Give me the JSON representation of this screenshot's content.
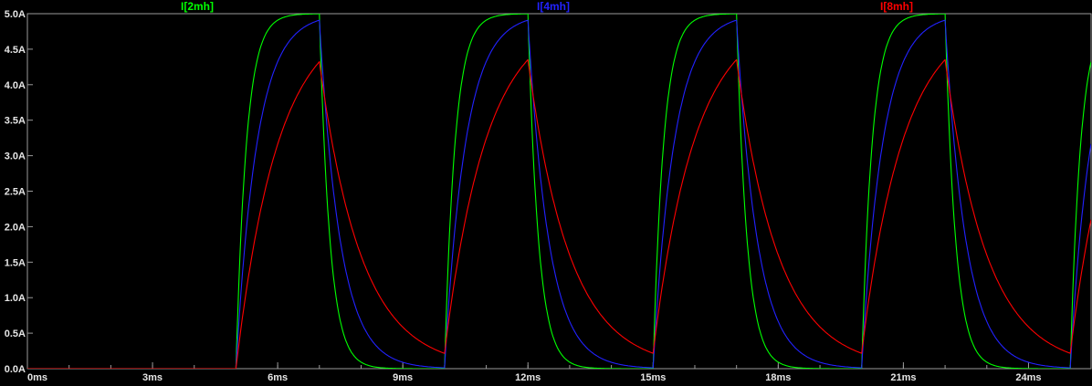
{
  "window": {
    "background": "#000000"
  },
  "chart_data": {
    "type": "line",
    "title": "",
    "grid": false,
    "legend_position": "top",
    "axis_color": "#9a9a9a",
    "tick_text_color": "#e6e6e6",
    "xlim": [
      0,
      25.5
    ],
    "ylim": [
      0,
      5
    ],
    "x_unit": "ms",
    "y_unit": "A",
    "x_ticks": [
      "0ms",
      "3ms",
      "6ms",
      "9ms",
      "12ms",
      "15ms",
      "18ms",
      "21ms",
      "24ms"
    ],
    "x_tick_values": [
      0,
      3,
      6,
      9,
      12,
      15,
      18,
      21,
      24
    ],
    "x_minor_tick_step_ms": 1,
    "y_ticks": [
      "5.0A",
      "4.5A",
      "4.0A",
      "3.5A",
      "3.0A",
      "2.5A",
      "2.0A",
      "1.5A",
      "1.0A",
      "0.5A",
      "0.0A"
    ],
    "y_tick_values": [
      5.0,
      4.5,
      4.0,
      3.5,
      3.0,
      2.5,
      2.0,
      1.5,
      1.0,
      0.5,
      0.0
    ],
    "series": [
      {
        "name": "I[2mh]",
        "color": "#00ff00",
        "tau_ms": 0.25,
        "label_x_frac": 0.181,
        "peak_A": 5.0,
        "min_between_pulses_A": 0.0
      },
      {
        "name": "I[4mh]",
        "color": "#2222ff",
        "tau_ms": 0.5,
        "label_x_frac": 0.507,
        "peak_A": 4.9,
        "min_between_pulses_A": 0.01
      },
      {
        "name": "I[8mh]",
        "color": "#ff0000",
        "tau_ms": 1.0,
        "label_x_frac": 0.821,
        "peak_A": 4.35,
        "min_between_pulses_A": 0.22
      }
    ],
    "signal": {
      "model": "pulse_train_first_order_exponential",
      "amplitude_A": 5,
      "initial_A": 0,
      "t_start_ms": 5,
      "t_on_ms": 2,
      "period_ms": 5,
      "t_end_ms": 25.6
    }
  }
}
